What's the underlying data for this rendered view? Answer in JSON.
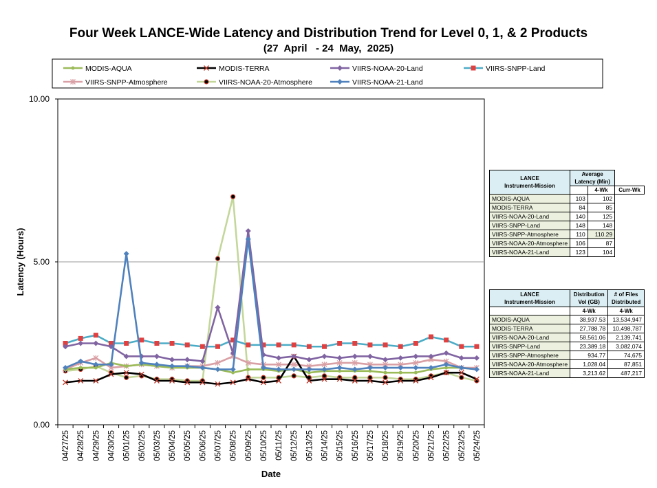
{
  "header": {
    "title": "Four Week LANCE-Wide Latency and Distribution Trend for Level 0, 1, & 2 Products",
    "subtitle": "(27  April   - 24  May,  2025)"
  },
  "chart_data": {
    "type": "line",
    "title": "Four Week LANCE-Wide Latency and Distribution Trend for Level 0, 1, & 2 Products",
    "xlabel": "Date",
    "ylabel": "Latency (Hours)",
    "ylim": [
      0,
      10
    ],
    "yticks": [
      "0.00",
      "5.00",
      "10.00"
    ],
    "gridlines": [
      5
    ],
    "legend_position": "top",
    "categories": [
      "04/27/25",
      "04/28/25",
      "04/29/25",
      "04/30/25",
      "05/01/25",
      "05/02/25",
      "05/03/25",
      "05/04/25",
      "05/05/25",
      "05/06/25",
      "05/07/25",
      "05/08/25",
      "05/09/25",
      "05/10/25",
      "05/11/25",
      "05/12/25",
      "05/13/25",
      "05/14/25",
      "05/15/25",
      "05/16/25",
      "05/17/25",
      "05/18/25",
      "05/19/25",
      "05/20/25",
      "05/21/25",
      "05/22/25",
      "05/23/25",
      "05/24/25"
    ],
    "series": [
      {
        "name": "MODIS-AQUA",
        "color": "#9bbb59",
        "marker": "dot",
        "values": [
          1.7,
          1.75,
          1.75,
          1.9,
          1.8,
          1.85,
          1.8,
          1.75,
          1.75,
          1.75,
          1.7,
          1.6,
          1.7,
          1.7,
          1.65,
          1.7,
          1.6,
          1.65,
          1.65,
          1.65,
          1.65,
          1.6,
          1.6,
          1.6,
          1.7,
          1.75,
          1.75,
          1.7
        ]
      },
      {
        "name": "MODIS-TERRA",
        "color": "#000000",
        "marker": "x",
        "values": [
          1.3,
          1.35,
          1.35,
          1.55,
          1.6,
          1.55,
          1.35,
          1.35,
          1.3,
          1.3,
          1.25,
          1.3,
          1.4,
          1.3,
          1.35,
          2.1,
          1.35,
          1.4,
          1.4,
          1.35,
          1.35,
          1.3,
          1.35,
          1.35,
          1.45,
          1.6,
          1.6,
          1.4
        ]
      },
      {
        "name": "VIIRS-NOAA-20-Land",
        "color": "#8064a2",
        "marker": "diamond",
        "values": [
          2.4,
          2.5,
          2.5,
          2.4,
          2.1,
          2.1,
          2.1,
          2.0,
          2.0,
          1.95,
          3.6,
          2.2,
          5.95,
          2.15,
          2.05,
          2.1,
          2.0,
          2.1,
          2.05,
          2.1,
          2.1,
          2.0,
          2.05,
          2.1,
          2.1,
          2.2,
          2.05,
          2.05
        ]
      },
      {
        "name": "VIIRS-SNPP-Land",
        "color": "#4bacc6",
        "marker": "square",
        "values": [
          2.5,
          2.65,
          2.75,
          2.5,
          2.5,
          2.6,
          2.5,
          2.5,
          2.45,
          2.4,
          2.4,
          2.6,
          2.45,
          2.45,
          2.45,
          2.45,
          2.4,
          2.4,
          2.5,
          2.5,
          2.45,
          2.45,
          2.4,
          2.5,
          2.7,
          2.6,
          2.4,
          2.4
        ]
      },
      {
        "name": "VIIRS-SNPP-Atmosphere",
        "color": "#d9a0a5",
        "marker": "star",
        "values": [
          1.7,
          1.9,
          2.05,
          1.75,
          1.8,
          1.85,
          1.8,
          1.75,
          1.8,
          1.8,
          1.9,
          2.1,
          1.9,
          1.85,
          1.85,
          1.85,
          1.8,
          1.85,
          1.9,
          1.9,
          1.85,
          1.85,
          1.85,
          1.9,
          2.0,
          1.95,
          1.75,
          1.75
        ]
      },
      {
        "name": "VIIRS-NOAA-20-Atmosphere",
        "color": "#c4d79b",
        "marker": "circle",
        "values": [
          1.65,
          1.7,
          1.8,
          1.6,
          1.45,
          1.5,
          1.4,
          1.4,
          1.35,
          1.35,
          5.1,
          7.0,
          1.45,
          1.45,
          1.45,
          1.5,
          1.45,
          1.5,
          1.45,
          1.45,
          1.45,
          1.45,
          1.4,
          1.4,
          1.5,
          1.6,
          1.45,
          1.35
        ]
      },
      {
        "name": "VIIRS-NOAA-21-Land",
        "color": "#4f81bd",
        "marker": "diamond",
        "values": [
          1.75,
          1.95,
          1.85,
          1.85,
          5.25,
          1.9,
          1.85,
          1.8,
          1.8,
          1.75,
          1.7,
          1.7,
          5.7,
          1.75,
          1.7,
          1.7,
          1.7,
          1.7,
          1.75,
          1.7,
          1.75,
          1.75,
          1.75,
          1.75,
          1.75,
          1.85,
          1.75,
          1.7
        ]
      }
    ]
  },
  "latency_table": {
    "headers": {
      "col1": "LANCE\nInstrument-Mission",
      "col2": "Average\nLatency (Min)",
      "sub1": "4-Wk",
      "sub2": "Curr-Wk"
    },
    "rows": [
      {
        "name": "MODIS-AQUA",
        "wk4": "103",
        "curr": "102"
      },
      {
        "name": "MODIS-TERRA",
        "wk4": "84",
        "curr": "85"
      },
      {
        "name": "VIIRS-NOAA-20-Land",
        "wk4": "140",
        "curr": "125"
      },
      {
        "name": "VIIRS-SNPP-Land",
        "wk4": "148",
        "curr": "148"
      },
      {
        "name": "VIIRS-SNPP-Atmosphere",
        "wk4": "110",
        "curr": "110.29"
      },
      {
        "name": "VIIRS-NOAA-20-Atmosphere",
        "wk4": "106",
        "curr": "87"
      },
      {
        "name": "VIIRS-NOAA-21-Land",
        "wk4": "123",
        "curr": "104"
      }
    ]
  },
  "distribution_table": {
    "headers": {
      "col1": "LANCE\nInstrument-Mission",
      "col2": "Distribution\nVol (GB)",
      "col3": "# of Files\nDistributed",
      "sub2": "4-Wk",
      "sub3": "4-Wk"
    },
    "rows": [
      {
        "name": "MODIS-AQUA",
        "vol": "38,937.53",
        "files": "13,534,947"
      },
      {
        "name": "MODIS-TERRA",
        "vol": "27,788.78",
        "files": "10,498,787"
      },
      {
        "name": "VIIRS-NOAA-20-Land",
        "vol": "58,561.06",
        "files": "2,139,741"
      },
      {
        "name": "VIIRS-SNPP-Land",
        "vol": "23,389.18",
        "files": "3,082,074"
      },
      {
        "name": "VIIRS-SNPP-Atmosphere",
        "vol": "934.77",
        "files": "74,675"
      },
      {
        "name": "VIIRS-NOAA-20-Atmosphere",
        "vol": "1,028.04",
        "files": "87,851"
      },
      {
        "name": "VIIRS-NOAA-21-Land",
        "vol": "3,213.62",
        "files": "487,217"
      }
    ]
  }
}
